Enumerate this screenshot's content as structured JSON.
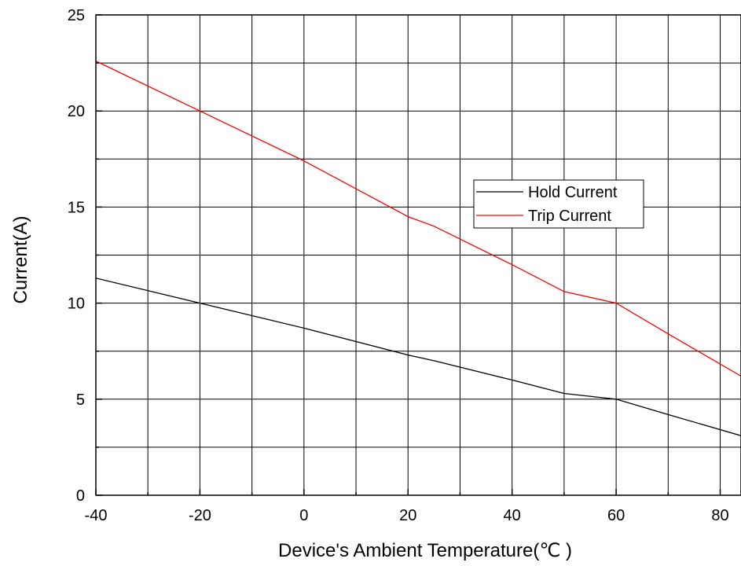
{
  "chart_data": {
    "type": "line",
    "title": "",
    "xlabel": "Device's Ambient Temperature(℃ )",
    "ylabel": "Current(A)",
    "xlim": [
      -40,
      84
    ],
    "ylim": [
      0,
      25
    ],
    "x_ticks": [
      -40,
      -20,
      0,
      20,
      40,
      60,
      80
    ],
    "x_tick_labels": [
      "-40",
      "-20",
      "0",
      "20",
      "40",
      "60",
      "80"
    ],
    "x_minor_ticks": [
      -30,
      -10,
      10,
      30,
      50,
      70
    ],
    "y_ticks": [
      0,
      5,
      10,
      15,
      20,
      25
    ],
    "y_tick_labels": [
      "0",
      "5",
      "10",
      "15",
      "20",
      "25"
    ],
    "y_minor_ticks": [
      2.5,
      7.5,
      12.5,
      17.5,
      22.5
    ],
    "grid": true,
    "legend_position": "center-right",
    "series": [
      {
        "name": "Hold Current",
        "color": "#000000",
        "x": [
          -40,
          -20,
          0,
          20,
          25,
          40,
          50,
          60,
          70,
          84
        ],
        "y": [
          11.3,
          10.0,
          8.7,
          7.3,
          7.0,
          6.0,
          5.3,
          5.0,
          4.2,
          3.1
        ]
      },
      {
        "name": "Trip Current",
        "color": "#ff0000",
        "x": [
          -40,
          -20,
          0,
          20,
          25,
          40,
          50,
          60,
          70,
          84
        ],
        "y": [
          22.6,
          20.0,
          17.4,
          14.5,
          14.0,
          12.0,
          10.6,
          10.0,
          8.4,
          6.2
        ]
      }
    ]
  }
}
